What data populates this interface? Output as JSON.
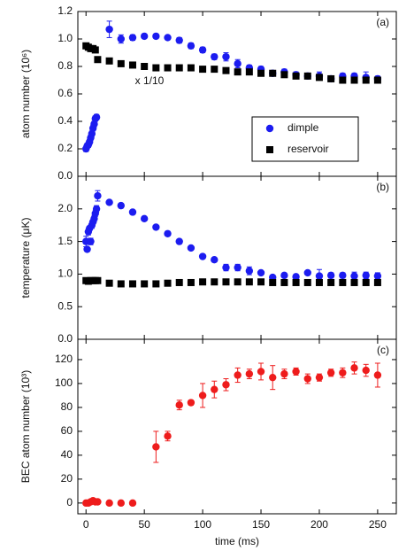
{
  "chart_data": [
    {
      "type": "scatter",
      "panel_label": "(a)",
      "ylabel": "atom number (10⁶)",
      "annotations": [
        "x 1/10"
      ],
      "legend": "lower-right",
      "ylim": [
        0,
        1.2
      ],
      "yticks": [
        {
          "value": 0,
          "label": "0.0"
        },
        0.2,
        0.4,
        0.6,
        0.8,
        {
          "value": 1,
          "label": "1.0"
        },
        1.2
      ],
      "series": [
        {
          "name": "dimple",
          "color": "#1c1cf0",
          "marker": "circle",
          "x": [
            0,
            1,
            2,
            3,
            4,
            5,
            6,
            7,
            8,
            9,
            20,
            30,
            40,
            50,
            60,
            70,
            80,
            90,
            100,
            110,
            120,
            130,
            140,
            150,
            160,
            170,
            180,
            190,
            200,
            210,
            220,
            230,
            240,
            250
          ],
          "values": [
            0.2,
            0.22,
            0.23,
            0.25,
            0.28,
            0.31,
            0.35,
            0.38,
            0.42,
            0.43,
            1.07,
            1.0,
            1.01,
            1.02,
            1.02,
            1.01,
            0.99,
            0.95,
            0.92,
            0.87,
            0.87,
            0.82,
            0.79,
            0.78,
            0.75,
            0.76,
            0.74,
            0.73,
            0.73,
            0.71,
            0.73,
            0.73,
            0.72,
            0.71
          ],
          "errors": [
            0.02,
            0.02,
            0.02,
            0.02,
            0.02,
            0.02,
            0.02,
            0.02,
            0.02,
            0.02,
            0.06,
            0.03,
            0.02,
            0.01,
            0.01,
            0.01,
            0.02,
            0.02,
            0.02,
            0.02,
            0.03,
            0.03,
            0.02,
            0.02,
            0.02,
            0.02,
            0.02,
            0.02,
            0.03,
            0.02,
            0.02,
            0.02,
            0.04,
            0.02
          ]
        },
        {
          "name": "reservoir",
          "color": "#000000",
          "marker": "square",
          "x": [
            0,
            2,
            4,
            6,
            8,
            10,
            20,
            30,
            40,
            50,
            60,
            70,
            80,
            90,
            100,
            110,
            120,
            130,
            140,
            150,
            160,
            170,
            180,
            190,
            200,
            210,
            220,
            230,
            240,
            250
          ],
          "values": [
            0.95,
            0.94,
            0.93,
            0.93,
            0.92,
            0.85,
            0.84,
            0.82,
            0.81,
            0.8,
            0.79,
            0.79,
            0.79,
            0.79,
            0.78,
            0.78,
            0.77,
            0.76,
            0.76,
            0.75,
            0.75,
            0.74,
            0.73,
            0.73,
            0.72,
            0.71,
            0.7,
            0.7,
            0.7,
            0.7
          ]
        }
      ]
    },
    {
      "type": "scatter",
      "panel_label": "(b)",
      "ylabel": "temperature (μK)",
      "ylim": [
        0,
        2.5
      ],
      "yticks": [
        {
          "value": 0,
          "label": "0.0"
        },
        0.5,
        {
          "value": 1,
          "label": "1.0"
        },
        1.5,
        {
          "value": 2,
          "label": "2.0"
        }
      ],
      "series": [
        {
          "color": "#1c1cf0",
          "marker": "circle",
          "x": [
            0,
            1,
            2,
            3,
            4,
            5,
            6,
            7,
            8,
            9,
            10,
            20,
            30,
            40,
            50,
            60,
            70,
            80,
            90,
            100,
            110,
            120,
            130,
            140,
            150,
            160,
            170,
            180,
            190,
            200,
            210,
            220,
            230,
            240,
            250
          ],
          "values": [
            1.5,
            1.38,
            1.65,
            1.7,
            1.5,
            1.75,
            1.8,
            1.85,
            1.93,
            2.0,
            2.2,
            2.1,
            2.05,
            1.95,
            1.85,
            1.72,
            1.62,
            1.5,
            1.4,
            1.27,
            1.22,
            1.1,
            1.1,
            1.05,
            1.02,
            0.95,
            0.98,
            0.96,
            1.02,
            0.97,
            0.98,
            0.98,
            0.97,
            0.98,
            0.97
          ],
          "errors": [
            0.08,
            0.03,
            0.05,
            0.03,
            0.05,
            0.05,
            0.03,
            0.05,
            0.05,
            0.05,
            0.08,
            0.02,
            0.02,
            0.02,
            0.02,
            0.02,
            0.02,
            0.02,
            0.02,
            0.03,
            0.03,
            0.05,
            0.05,
            0.06,
            0.03,
            0.03,
            0.03,
            0.03,
            0.03,
            0.1,
            0.04,
            0.04,
            0.06,
            0.05,
            0.05
          ]
        },
        {
          "color": "#000000",
          "marker": "square",
          "x": [
            0,
            2,
            4,
            6,
            8,
            10,
            20,
            30,
            40,
            50,
            60,
            70,
            80,
            90,
            100,
            110,
            120,
            130,
            140,
            150,
            160,
            170,
            180,
            190,
            200,
            210,
            220,
            230,
            240,
            250
          ],
          "values": [
            0.9,
            0.89,
            0.9,
            0.9,
            0.9,
            0.9,
            0.86,
            0.85,
            0.85,
            0.85,
            0.85,
            0.86,
            0.87,
            0.87,
            0.88,
            0.88,
            0.88,
            0.88,
            0.88,
            0.88,
            0.87,
            0.87,
            0.87,
            0.87,
            0.87,
            0.87,
            0.87,
            0.87,
            0.87,
            0.87
          ]
        }
      ]
    },
    {
      "type": "scatter",
      "panel_label": "(c)",
      "ylabel": "BEC atom number (10³)",
      "xlabel": "time (ms)",
      "xlim": [
        -7,
        266
      ],
      "xticks": [
        0,
        50,
        100,
        150,
        200,
        250
      ],
      "ylim": [
        -9,
        137
      ],
      "yticks": [
        0,
        20,
        40,
        60,
        80,
        100,
        120
      ],
      "series": [
        {
          "color": "#ee1c1c",
          "marker": "circle",
          "x": [
            0,
            2,
            4,
            6,
            8,
            10,
            20,
            30,
            40,
            60,
            70,
            80,
            90,
            100,
            110,
            120,
            130,
            140,
            150,
            160,
            170,
            180,
            190,
            200,
            210,
            220,
            230,
            240,
            250
          ],
          "values": [
            0,
            0,
            1,
            2,
            1,
            1,
            0,
            0,
            0,
            47,
            56,
            82,
            84,
            90,
            95,
            99,
            107,
            108,
            110,
            105,
            108,
            110,
            104,
            105,
            109,
            109,
            113,
            111,
            107
          ],
          "errors": [
            0,
            0,
            0,
            0,
            0,
            0,
            0,
            0,
            0,
            13,
            4,
            4,
            2,
            10,
            7,
            5,
            6,
            4,
            7,
            10,
            4,
            3,
            4,
            3,
            3,
            4,
            5,
            5,
            10
          ]
        }
      ]
    }
  ]
}
